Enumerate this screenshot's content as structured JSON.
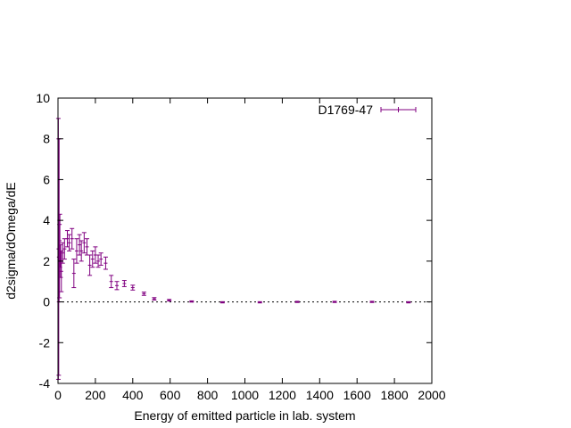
{
  "chart_data": {
    "type": "scatter",
    "title": "",
    "xlabel": "Energy of emitted particle in lab. system",
    "ylabel": "d2sigma/dOmega/dE",
    "xlim": [
      0,
      2000
    ],
    "ylim": [
      -4,
      10
    ],
    "x_ticks": [
      "0",
      "200",
      "400",
      "600",
      "800",
      "1000",
      "1200",
      "1400",
      "1600",
      "1800",
      "2000"
    ],
    "y_ticks": [
      "-4",
      "-2",
      "0",
      "2",
      "4",
      "6",
      "8",
      "10"
    ],
    "x_tick_values": [
      0,
      200,
      400,
      600,
      800,
      1000,
      1200,
      1400,
      1600,
      1800,
      2000
    ],
    "y_tick_values": [
      -4,
      -2,
      0,
      2,
      4,
      6,
      8,
      10
    ],
    "grid": false,
    "zero_line": true,
    "legend_position": "top-right",
    "series": [
      {
        "name": "D1769-47",
        "color": "#800080",
        "points": [
          {
            "x": 2,
            "y": 2.6,
            "err": 6.4
          },
          {
            "x": 4,
            "y": 2.2,
            "err": 5.8
          },
          {
            "x": 6,
            "y": 4.0,
            "err": 4.0
          },
          {
            "x": 8,
            "y": 2.0,
            "err": 1.8
          },
          {
            "x": 10,
            "y": 3.0,
            "err": 1.3
          },
          {
            "x": 14,
            "y": 2.0,
            "err": 0.8
          },
          {
            "x": 18,
            "y": 1.5,
            "err": 1.0
          },
          {
            "x": 25,
            "y": 2.4,
            "err": 0.5
          },
          {
            "x": 35,
            "y": 2.6,
            "err": 0.5
          },
          {
            "x": 50,
            "y": 3.1,
            "err": 0.4
          },
          {
            "x": 60,
            "y": 2.9,
            "err": 0.4
          },
          {
            "x": 75,
            "y": 3.1,
            "err": 0.5
          },
          {
            "x": 85,
            "y": 1.4,
            "err": 0.7
          },
          {
            "x": 100,
            "y": 2.5,
            "err": 0.6
          },
          {
            "x": 115,
            "y": 2.8,
            "err": 0.5
          },
          {
            "x": 125,
            "y": 2.5,
            "err": 0.5
          },
          {
            "x": 140,
            "y": 2.9,
            "err": 0.5
          },
          {
            "x": 155,
            "y": 2.7,
            "err": 0.4
          },
          {
            "x": 170,
            "y": 1.8,
            "err": 0.5
          },
          {
            "x": 185,
            "y": 2.1,
            "err": 0.4
          },
          {
            "x": 200,
            "y": 2.3,
            "err": 0.4
          },
          {
            "x": 215,
            "y": 2.0,
            "err": 0.3
          },
          {
            "x": 230,
            "y": 2.1,
            "err": 0.3
          },
          {
            "x": 255,
            "y": 1.9,
            "err": 0.3
          },
          {
            "x": 285,
            "y": 1.0,
            "err": 0.3
          },
          {
            "x": 315,
            "y": 0.8,
            "err": 0.2
          },
          {
            "x": 355,
            "y": 0.9,
            "err": 0.15
          },
          {
            "x": 400,
            "y": 0.7,
            "err": 0.12
          },
          {
            "x": 460,
            "y": 0.4,
            "err": 0.08
          },
          {
            "x": 515,
            "y": 0.15,
            "err": 0.06
          },
          {
            "x": 595,
            "y": 0.08,
            "err": 0.04
          },
          {
            "x": 715,
            "y": 0.02,
            "err": 0.03
          },
          {
            "x": 880,
            "y": -0.02,
            "err": 0.03
          },
          {
            "x": 1080,
            "y": -0.02,
            "err": 0.03
          },
          {
            "x": 1280,
            "y": 0.0,
            "err": 0.03
          },
          {
            "x": 1480,
            "y": 0.0,
            "err": 0.03
          },
          {
            "x": 1680,
            "y": 0.0,
            "err": 0.03
          },
          {
            "x": 1875,
            "y": -0.02,
            "err": 0.03
          }
        ]
      }
    ]
  }
}
